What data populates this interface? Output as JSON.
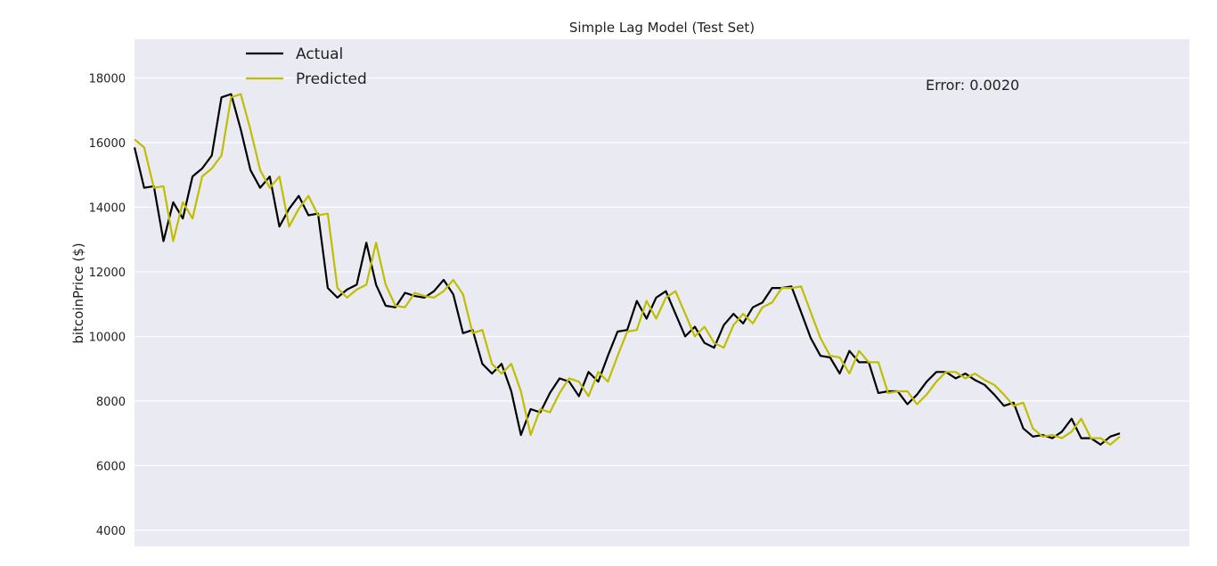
{
  "chart_data": {
    "type": "line",
    "title": "Simple Lag Model (Test Set)",
    "xlabel": "",
    "ylabel": "bitcoinPrice ($)",
    "ylim": [
      3500,
      19200
    ],
    "yticks": [
      4000,
      6000,
      8000,
      10000,
      12000,
      14000,
      16000,
      18000
    ],
    "xtick_labels": [],
    "grid": true,
    "legend_position": "top-left",
    "annotation": "Error: 0.0020",
    "series": [
      {
        "name": "Actual",
        "color": "#000000",
        "values": [
          15850,
          14600,
          14650,
          12950,
          14150,
          13650,
          14950,
          15200,
          15600,
          17400,
          17500,
          16400,
          15150,
          14600,
          14950,
          13400,
          13950,
          14350,
          13750,
          13800,
          11500,
          11200,
          11450,
          11600,
          12900,
          11600,
          10950,
          10900,
          11350,
          11250,
          11200,
          11400,
          11750,
          11300,
          10100,
          10200,
          9150,
          8850,
          9150,
          8300,
          6950,
          7750,
          7650,
          8250,
          8700,
          8600,
          8150,
          8900,
          8600,
          9400,
          10150,
          10200,
          11100,
          10550,
          11200,
          11400,
          10700,
          10000,
          10300,
          9800,
          9650,
          10350,
          10700,
          10400,
          10900,
          11050,
          11500,
          11500,
          11550,
          10750,
          9950,
          9400,
          9350,
          8850,
          9550,
          9200,
          9200,
          8250,
          8300,
          8300,
          7900,
          8200,
          8600,
          8900,
          8900,
          8700,
          8850,
          8650,
          8500,
          8200,
          7850,
          7950,
          7150,
          6900,
          6950,
          6850,
          7050,
          7450,
          6850,
          6850,
          6650,
          6900,
          7000
        ]
      },
      {
        "name": "Predicted",
        "color": "#bfbf00",
        "values": [
          16100,
          15850,
          14600,
          14650,
          12950,
          14150,
          13650,
          14950,
          15200,
          15600,
          17400,
          17500,
          16400,
          15150,
          14600,
          14950,
          13400,
          13950,
          14350,
          13750,
          13800,
          11500,
          11200,
          11450,
          11600,
          12900,
          11600,
          10950,
          10900,
          11350,
          11250,
          11200,
          11400,
          11750,
          11300,
          10100,
          10200,
          9150,
          8850,
          9150,
          8300,
          6950,
          7750,
          7650,
          8250,
          8700,
          8600,
          8150,
          8900,
          8600,
          9400,
          10150,
          10200,
          11100,
          10550,
          11200,
          11400,
          10700,
          10000,
          10300,
          9800,
          9650,
          10350,
          10700,
          10400,
          10900,
          11050,
          11500,
          11500,
          11550,
          10750,
          9950,
          9400,
          9350,
          8850,
          9550,
          9200,
          9200,
          8250,
          8300,
          8300,
          7900,
          8200,
          8600,
          8900,
          8900,
          8700,
          8850,
          8650,
          8500,
          8200,
          7850,
          7950,
          7150,
          6900,
          6950,
          6850,
          7050,
          7450,
          6850,
          6850,
          6650,
          6900
        ]
      }
    ]
  }
}
